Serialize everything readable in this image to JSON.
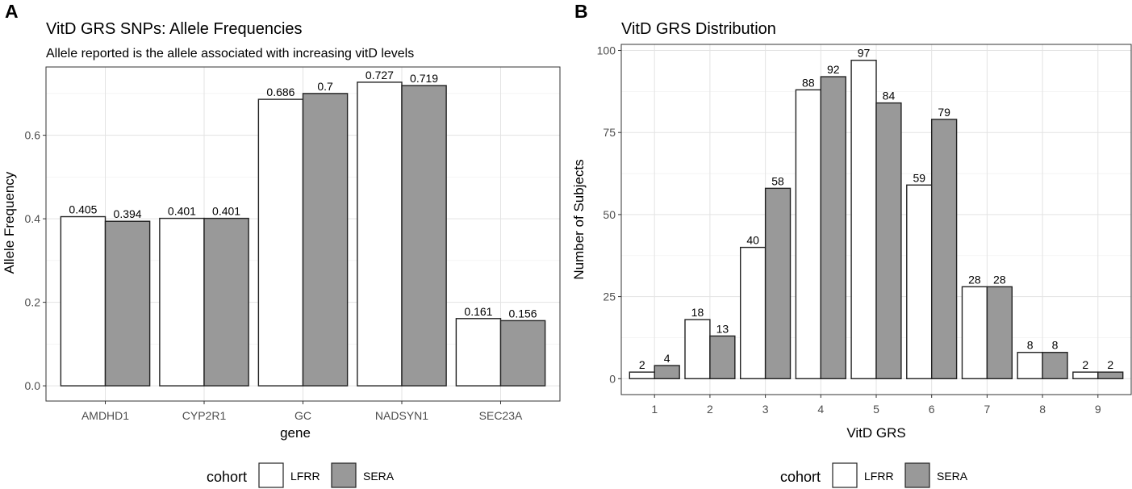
{
  "panels": [
    {
      "letter": "A",
      "title": "VitD GRS SNPs: Allele Frequencies",
      "subtitle": "Allele reported is the allele associated with increasing vitD levels"
    },
    {
      "letter": "B",
      "title": "VitD GRS Distribution",
      "subtitle": ""
    }
  ],
  "legend": {
    "title": "cohort",
    "entries": [
      "LFRR",
      "SERA"
    ]
  },
  "colors": {
    "lfrr": "#ffffff",
    "sera": "#999999",
    "border": "#222222",
    "grid": "#e5e5e5",
    "panel_border": "#333333",
    "axis_text": "#4d4d4d"
  },
  "chart_data": [
    {
      "type": "bar",
      "title": "VitD GRS SNPs: Allele Frequencies",
      "subtitle": "Allele reported is the allele associated with increasing vitD levels",
      "xlabel": "gene",
      "ylabel": "Allele Frequency",
      "categories": [
        "AMDHD1",
        "CYP2R1",
        "GC",
        "NADSYN1",
        "SEC23A"
      ],
      "series": [
        {
          "name": "LFRR",
          "values": [
            0.405,
            0.401,
            0.686,
            0.727,
            0.161
          ],
          "labels": [
            "0.405",
            "0.401",
            "0.686",
            "0.727",
            "0.161"
          ]
        },
        {
          "name": "SERA",
          "values": [
            0.394,
            0.401,
            0.7,
            0.719,
            0.156
          ],
          "labels": [
            "0.394",
            "0.401",
            "0.7",
            "0.719",
            "0.156"
          ]
        }
      ],
      "ylim": [
        -0.0365,
        0.7635
      ],
      "yticks": [
        0,
        0.2,
        0.4,
        0.6
      ],
      "ytick_labels": [
        "0.0",
        "0.2",
        "0.4",
        "0.6"
      ],
      "grid": true,
      "legend": "bottom"
    },
    {
      "type": "bar",
      "title": "VitD GRS Distribution",
      "xlabel": "VitD GRS",
      "ylabel": "Number of Subjects",
      "categories": [
        "1",
        "2",
        "3",
        "4",
        "5",
        "6",
        "7",
        "8",
        "9"
      ],
      "series": [
        {
          "name": "LFRR",
          "values": [
            2,
            18,
            40,
            88,
            97,
            59,
            28,
            8,
            2
          ],
          "labels": [
            "2",
            "18",
            "40",
            "88",
            "97",
            "59",
            "28",
            "8",
            "2"
          ]
        },
        {
          "name": "SERA",
          "values": [
            4,
            13,
            58,
            92,
            84,
            79,
            28,
            8,
            2
          ],
          "labels": [
            "4",
            "13",
            "58",
            "92",
            "84",
            "79",
            "28",
            "8",
            "2"
          ]
        }
      ],
      "ylim": [
        -4.85,
        101.85
      ],
      "yticks": [
        0,
        25,
        50,
        75,
        100
      ],
      "ytick_labels": [
        "0",
        "25",
        "50",
        "75",
        "100"
      ],
      "grid": true,
      "legend": "bottom"
    }
  ]
}
